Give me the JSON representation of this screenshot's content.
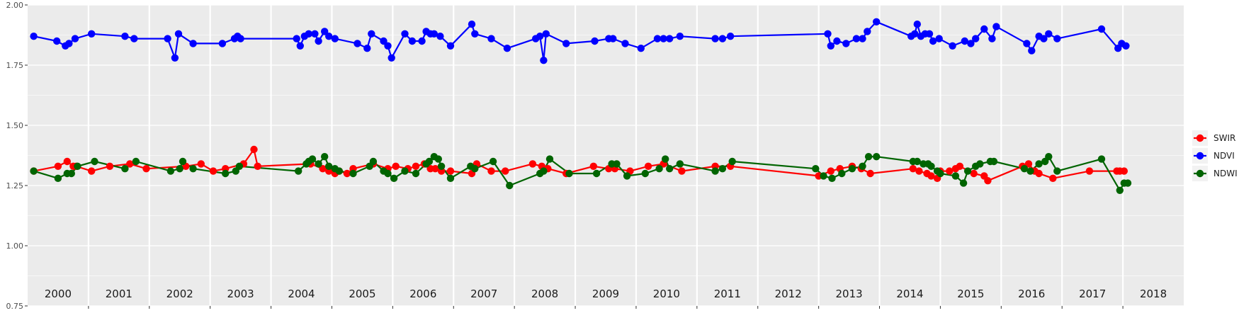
{
  "chart_data": {
    "type": "line",
    "title": "",
    "xlabel": "",
    "ylabel": "",
    "xlim": [
      2000,
      2019
    ],
    "ylim": [
      0.75,
      2.0
    ],
    "y_ticks": [
      "0.75",
      "1.00",
      "1.25",
      "1.50",
      "1.75",
      "2.00"
    ],
    "year_labels": [
      "2000",
      "2001",
      "2002",
      "2003",
      "2004",
      "2005",
      "2006",
      "2007",
      "2008",
      "2009",
      "2010",
      "2011",
      "2012",
      "2013",
      "2014",
      "2015",
      "2016",
      "2017",
      "2018"
    ],
    "grid": true,
    "legend_position": "right",
    "series": [
      {
        "name": "SWIR",
        "color": "#ff0000",
        "points": [
          [
            2000.1,
            1.31
          ],
          [
            2000.5,
            1.33
          ],
          [
            2000.65,
            1.35
          ],
          [
            2000.75,
            1.33
          ],
          [
            2000.8,
            1.33
          ],
          [
            2001.05,
            1.31
          ],
          [
            2001.35,
            1.33
          ],
          [
            2001.68,
            1.34
          ],
          [
            2001.95,
            1.32
          ],
          [
            2002.6,
            1.33
          ],
          [
            2002.85,
            1.34
          ],
          [
            2003.05,
            1.31
          ],
          [
            2003.25,
            1.32
          ],
          [
            2003.55,
            1.34
          ],
          [
            2003.72,
            1.4
          ],
          [
            2003.78,
            1.33
          ],
          [
            2004.65,
            1.34
          ],
          [
            2004.85,
            1.32
          ],
          [
            2004.95,
            1.31
          ],
          [
            2005.05,
            1.3
          ],
          [
            2005.12,
            1.31
          ],
          [
            2005.25,
            1.3
          ],
          [
            2005.35,
            1.32
          ],
          [
            2005.68,
            1.34
          ],
          [
            2005.92,
            1.32
          ],
          [
            2006.05,
            1.33
          ],
          [
            2006.25,
            1.32
          ],
          [
            2006.38,
            1.33
          ],
          [
            2006.52,
            1.34
          ],
          [
            2006.62,
            1.32
          ],
          [
            2006.7,
            1.32
          ],
          [
            2006.8,
            1.31
          ],
          [
            2006.95,
            1.31
          ],
          [
            2007.3,
            1.3
          ],
          [
            2007.38,
            1.34
          ],
          [
            2007.62,
            1.31
          ],
          [
            2007.85,
            1.31
          ],
          [
            2008.3,
            1.34
          ],
          [
            2008.45,
            1.33
          ],
          [
            2008.55,
            1.32
          ],
          [
            2008.85,
            1.3
          ],
          [
            2009.3,
            1.33
          ],
          [
            2009.55,
            1.32
          ],
          [
            2009.65,
            1.32
          ],
          [
            2009.9,
            1.31
          ],
          [
            2010.2,
            1.33
          ],
          [
            2010.45,
            1.34
          ],
          [
            2010.75,
            1.31
          ],
          [
            2011.3,
            1.33
          ],
          [
            2011.55,
            1.33
          ],
          [
            2013.0,
            1.29
          ],
          [
            2013.2,
            1.31
          ],
          [
            2013.35,
            1.32
          ],
          [
            2013.55,
            1.33
          ],
          [
            2013.7,
            1.32
          ],
          [
            2013.85,
            1.3
          ],
          [
            2014.55,
            1.32
          ],
          [
            2014.65,
            1.31
          ],
          [
            2014.78,
            1.3
          ],
          [
            2014.85,
            1.29
          ],
          [
            2014.95,
            1.28
          ],
          [
            2015.0,
            1.31
          ],
          [
            2015.15,
            1.31
          ],
          [
            2015.25,
            1.32
          ],
          [
            2015.32,
            1.33
          ],
          [
            2015.55,
            1.3
          ],
          [
            2015.72,
            1.29
          ],
          [
            2015.78,
            1.27
          ],
          [
            2016.35,
            1.33
          ],
          [
            2016.45,
            1.34
          ],
          [
            2016.55,
            1.31
          ],
          [
            2016.62,
            1.3
          ],
          [
            2016.85,
            1.28
          ],
          [
            2017.45,
            1.31
          ],
          [
            2017.9,
            1.31
          ],
          [
            2017.95,
            1.31
          ],
          [
            2018.02,
            1.31
          ]
        ]
      },
      {
        "name": "NDVI",
        "color": "#0000ff",
        "points": [
          [
            2000.1,
            1.87
          ],
          [
            2000.48,
            1.85
          ],
          [
            2000.62,
            1.83
          ],
          [
            2000.68,
            1.84
          ],
          [
            2000.78,
            1.86
          ],
          [
            2001.05,
            1.88
          ],
          [
            2001.6,
            1.87
          ],
          [
            2001.75,
            1.86
          ],
          [
            2002.3,
            1.86
          ],
          [
            2002.42,
            1.78
          ],
          [
            2002.48,
            1.88
          ],
          [
            2002.72,
            1.84
          ],
          [
            2003.2,
            1.84
          ],
          [
            2003.4,
            1.86
          ],
          [
            2003.45,
            1.87
          ],
          [
            2003.5,
            1.86
          ],
          [
            2004.42,
            1.86
          ],
          [
            2004.48,
            1.83
          ],
          [
            2004.55,
            1.87
          ],
          [
            2004.62,
            1.88
          ],
          [
            2004.72,
            1.88
          ],
          [
            2004.78,
            1.85
          ],
          [
            2004.88,
            1.89
          ],
          [
            2004.95,
            1.87
          ],
          [
            2005.05,
            1.86
          ],
          [
            2005.42,
            1.84
          ],
          [
            2005.58,
            1.82
          ],
          [
            2005.65,
            1.88
          ],
          [
            2005.85,
            1.85
          ],
          [
            2005.92,
            1.83
          ],
          [
            2005.98,
            1.78
          ],
          [
            2006.2,
            1.88
          ],
          [
            2006.32,
            1.85
          ],
          [
            2006.48,
            1.85
          ],
          [
            2006.55,
            1.89
          ],
          [
            2006.62,
            1.88
          ],
          [
            2006.68,
            1.88
          ],
          [
            2006.78,
            1.87
          ],
          [
            2006.95,
            1.83
          ],
          [
            2007.3,
            1.92
          ],
          [
            2007.35,
            1.88
          ],
          [
            2007.62,
            1.86
          ],
          [
            2007.88,
            1.82
          ],
          [
            2008.35,
            1.86
          ],
          [
            2008.42,
            1.87
          ],
          [
            2008.48,
            1.77
          ],
          [
            2008.52,
            1.88
          ],
          [
            2008.85,
            1.84
          ],
          [
            2009.32,
            1.85
          ],
          [
            2009.55,
            1.86
          ],
          [
            2009.62,
            1.86
          ],
          [
            2009.82,
            1.84
          ],
          [
            2010.08,
            1.82
          ],
          [
            2010.35,
            1.86
          ],
          [
            2010.45,
            1.86
          ],
          [
            2010.55,
            1.86
          ],
          [
            2010.72,
            1.87
          ],
          [
            2011.3,
            1.86
          ],
          [
            2011.42,
            1.86
          ],
          [
            2011.55,
            1.87
          ],
          [
            2013.15,
            1.88
          ],
          [
            2013.2,
            1.83
          ],
          [
            2013.3,
            1.85
          ],
          [
            2013.45,
            1.84
          ],
          [
            2013.62,
            1.86
          ],
          [
            2013.72,
            1.86
          ],
          [
            2013.8,
            1.89
          ],
          [
            2013.95,
            1.93
          ],
          [
            2014.52,
            1.87
          ],
          [
            2014.58,
            1.88
          ],
          [
            2014.62,
            1.92
          ],
          [
            2014.68,
            1.87
          ],
          [
            2014.75,
            1.88
          ],
          [
            2014.82,
            1.88
          ],
          [
            2014.88,
            1.85
          ],
          [
            2014.98,
            1.86
          ],
          [
            2015.2,
            1.83
          ],
          [
            2015.4,
            1.85
          ],
          [
            2015.5,
            1.84
          ],
          [
            2015.58,
            1.86
          ],
          [
            2015.72,
            1.9
          ],
          [
            2015.85,
            1.86
          ],
          [
            2015.92,
            1.91
          ],
          [
            2016.42,
            1.84
          ],
          [
            2016.5,
            1.81
          ],
          [
            2016.62,
            1.87
          ],
          [
            2016.7,
            1.86
          ],
          [
            2016.78,
            1.88
          ],
          [
            2016.92,
            1.86
          ],
          [
            2017.65,
            1.9
          ],
          [
            2017.92,
            1.82
          ],
          [
            2017.98,
            1.84
          ],
          [
            2018.05,
            1.83
          ]
        ]
      },
      {
        "name": "NDWI",
        "color": "#006400",
        "points": [
          [
            2000.1,
            1.31
          ],
          [
            2000.5,
            1.28
          ],
          [
            2000.65,
            1.3
          ],
          [
            2000.72,
            1.3
          ],
          [
            2000.82,
            1.33
          ],
          [
            2001.1,
            1.35
          ],
          [
            2001.6,
            1.32
          ],
          [
            2001.78,
            1.35
          ],
          [
            2002.35,
            1.31
          ],
          [
            2002.5,
            1.32
          ],
          [
            2002.55,
            1.35
          ],
          [
            2002.72,
            1.32
          ],
          [
            2003.25,
            1.3
          ],
          [
            2003.42,
            1.31
          ],
          [
            2003.48,
            1.33
          ],
          [
            2004.45,
            1.31
          ],
          [
            2004.58,
            1.34
          ],
          [
            2004.62,
            1.35
          ],
          [
            2004.68,
            1.36
          ],
          [
            2004.78,
            1.34
          ],
          [
            2004.88,
            1.37
          ],
          [
            2004.95,
            1.33
          ],
          [
            2005.05,
            1.32
          ],
          [
            2005.12,
            1.31
          ],
          [
            2005.35,
            1.3
          ],
          [
            2005.62,
            1.33
          ],
          [
            2005.68,
            1.35
          ],
          [
            2005.85,
            1.31
          ],
          [
            2005.92,
            1.3
          ],
          [
            2006.02,
            1.28
          ],
          [
            2006.2,
            1.31
          ],
          [
            2006.38,
            1.3
          ],
          [
            2006.55,
            1.34
          ],
          [
            2006.6,
            1.35
          ],
          [
            2006.68,
            1.37
          ],
          [
            2006.75,
            1.36
          ],
          [
            2006.8,
            1.33
          ],
          [
            2006.95,
            1.28
          ],
          [
            2007.28,
            1.33
          ],
          [
            2007.35,
            1.32
          ],
          [
            2007.65,
            1.35
          ],
          [
            2007.92,
            1.25
          ],
          [
            2008.42,
            1.3
          ],
          [
            2008.48,
            1.31
          ],
          [
            2008.58,
            1.36
          ],
          [
            2008.9,
            1.3
          ],
          [
            2009.35,
            1.3
          ],
          [
            2009.6,
            1.34
          ],
          [
            2009.68,
            1.34
          ],
          [
            2009.85,
            1.29
          ],
          [
            2010.15,
            1.3
          ],
          [
            2010.38,
            1.32
          ],
          [
            2010.48,
            1.36
          ],
          [
            2010.55,
            1.32
          ],
          [
            2010.72,
            1.34
          ],
          [
            2011.3,
            1.31
          ],
          [
            2011.42,
            1.32
          ],
          [
            2011.58,
            1.35
          ],
          [
            2012.95,
            1.32
          ],
          [
            2013.08,
            1.29
          ],
          [
            2013.22,
            1.28
          ],
          [
            2013.38,
            1.3
          ],
          [
            2013.55,
            1.32
          ],
          [
            2013.72,
            1.33
          ],
          [
            2013.82,
            1.37
          ],
          [
            2013.95,
            1.37
          ],
          [
            2014.55,
            1.35
          ],
          [
            2014.62,
            1.35
          ],
          [
            2014.72,
            1.34
          ],
          [
            2014.8,
            1.34
          ],
          [
            2014.85,
            1.33
          ],
          [
            2014.95,
            1.31
          ],
          [
            2015.0,
            1.3
          ],
          [
            2015.25,
            1.29
          ],
          [
            2015.38,
            1.26
          ],
          [
            2015.45,
            1.31
          ],
          [
            2015.58,
            1.33
          ],
          [
            2015.65,
            1.34
          ],
          [
            2015.82,
            1.35
          ],
          [
            2015.88,
            1.35
          ],
          [
            2016.38,
            1.32
          ],
          [
            2016.48,
            1.31
          ],
          [
            2016.62,
            1.34
          ],
          [
            2016.72,
            1.35
          ],
          [
            2016.78,
            1.37
          ],
          [
            2016.92,
            1.31
          ],
          [
            2017.65,
            1.36
          ],
          [
            2017.95,
            1.23
          ],
          [
            2018.02,
            1.26
          ],
          [
            2018.08,
            1.26
          ]
        ]
      }
    ]
  }
}
